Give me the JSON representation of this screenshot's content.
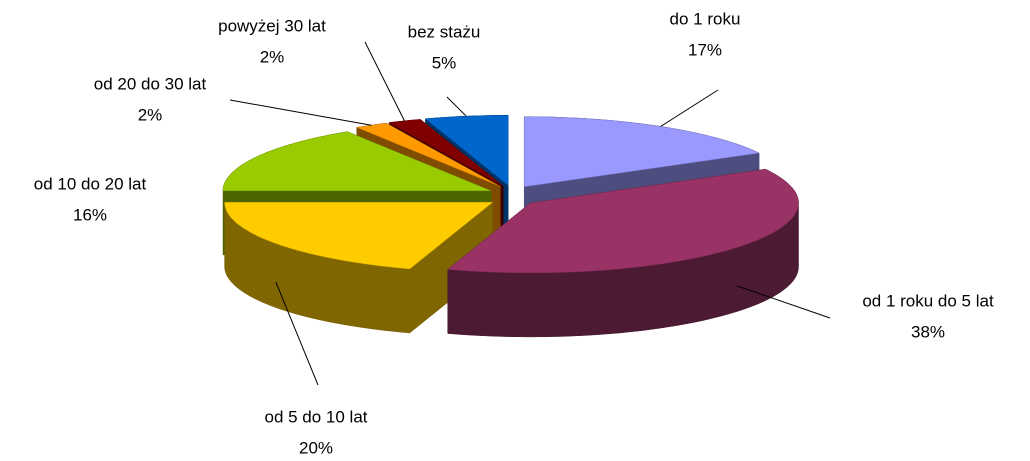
{
  "chart_data": {
    "type": "pie3d",
    "categories": [
      "do 1 roku",
      "od 1 roku do 5 lat",
      "od 5 do 10 lat",
      "od 10 do 20 lat",
      "od 20 do 30 lat",
      "powyżej 30 lat",
      "bez stażu"
    ],
    "values": [
      17,
      38,
      20,
      16,
      2,
      2,
      5
    ],
    "value_labels": [
      "17%",
      "38%",
      "20%",
      "16%",
      "2%",
      "2%",
      "5%"
    ],
    "colors": [
      "#9999ff",
      "#993366",
      "#ffcc00",
      "#99cc00",
      "#ff9900",
      "#800000",
      "#0066cc"
    ]
  }
}
